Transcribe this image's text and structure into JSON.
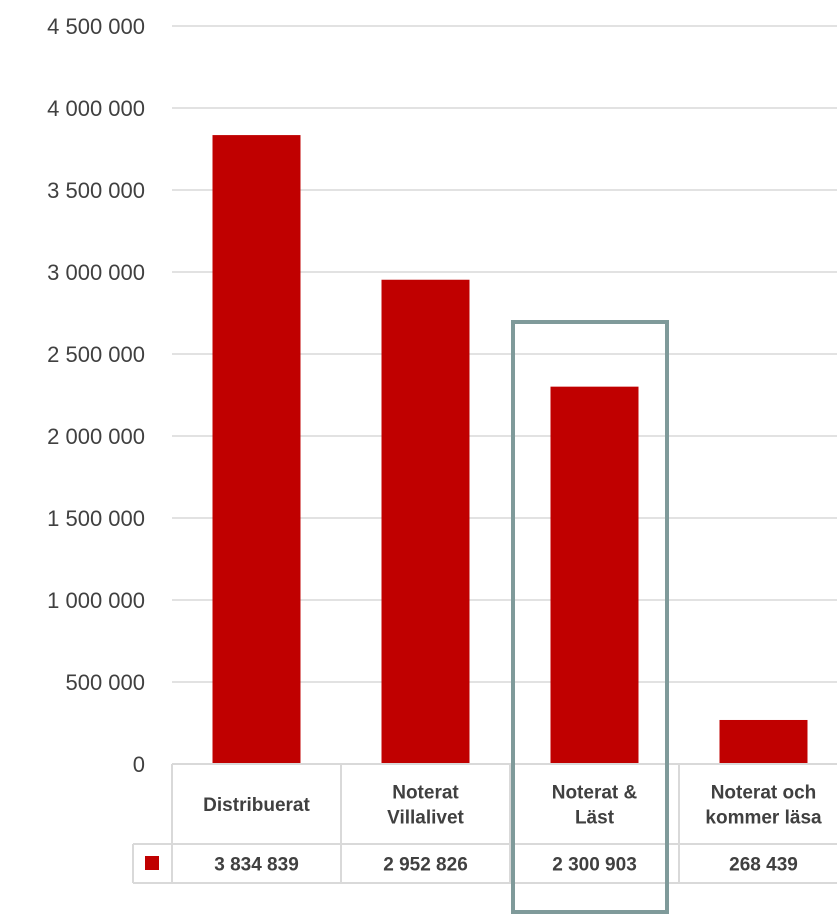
{
  "chart_data": {
    "type": "bar",
    "categories": [
      [
        "Distribuerat"
      ],
      [
        "Noterat",
        "Villalivet"
      ],
      [
        "Noterat &",
        "Läst"
      ],
      [
        "Noterat och",
        "kommer läsa"
      ]
    ],
    "values": [
      3834839,
      2952826,
      2300903,
      268439
    ],
    "value_labels": [
      "3 834 839",
      "2 952 826",
      "2 300 903",
      "268 439"
    ],
    "y_ticks": [
      0,
      500000,
      1000000,
      1500000,
      2000000,
      2500000,
      3000000,
      3500000,
      4000000,
      4500000
    ],
    "y_tick_labels": [
      "0",
      "500 000",
      "1 000 000",
      "1 500 000",
      "2 000 000",
      "2 500 000",
      "3 000 000",
      "3 500 000",
      "4 000 000",
      "4 500 000"
    ],
    "ylim": [
      0,
      4500000
    ],
    "grid": true,
    "highlighted_category_index": 2,
    "data_table": true,
    "colors": {
      "bar": "#c00000",
      "grid": "#d9d9d9",
      "table_border": "#d9d9d9",
      "highlight_box": "#7f9a9a",
      "text": "#404040"
    }
  }
}
